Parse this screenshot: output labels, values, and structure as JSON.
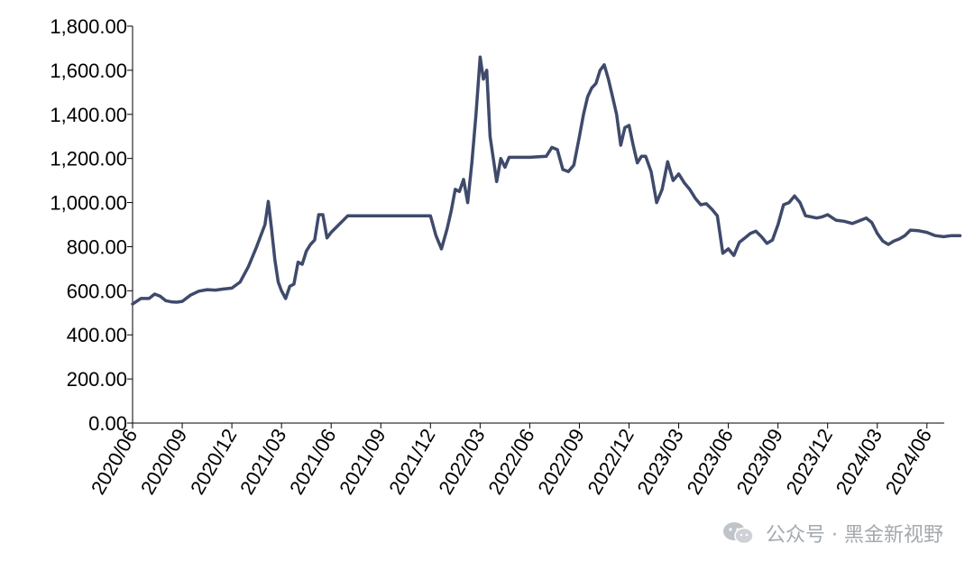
{
  "chart_data": {
    "type": "line",
    "title": "",
    "xlabel": "",
    "ylabel": "",
    "ylim": [
      0,
      1800
    ],
    "yticks": [
      "0.00",
      "200.00",
      "400.00",
      "600.00",
      "800.00",
      "1,000.00",
      "1,200.00",
      "1,400.00",
      "1,600.00",
      "1,800.00"
    ],
    "xticks": [
      "2020/06",
      "2020/09",
      "2020/12",
      "2021/03",
      "2021/06",
      "2021/09",
      "2021/12",
      "2022/03",
      "2022/06",
      "2022/09",
      "2022/12",
      "2023/03",
      "2023/06",
      "2023/09",
      "2023/12",
      "2024/03",
      "2024/06"
    ],
    "grid": false,
    "line_color": "#3f4a6b",
    "series": [
      {
        "points": [
          [
            "2020/06",
            540
          ],
          [
            "2020/06",
            565
          ],
          [
            "2020/07",
            565
          ],
          [
            "2020/07",
            585
          ],
          [
            "2020/07",
            575
          ],
          [
            "2020/08",
            555
          ],
          [
            "2020/08",
            550
          ],
          [
            "2020/08",
            548
          ],
          [
            "2020/09",
            552
          ],
          [
            "2020/09",
            580
          ],
          [
            "2020/10",
            598
          ],
          [
            "2020/10",
            605
          ],
          [
            "2020/11",
            603
          ],
          [
            "2020/11",
            608
          ],
          [
            "2020/12",
            612
          ],
          [
            "2020/12",
            640
          ],
          [
            "2021/01",
            710
          ],
          [
            "2021/01",
            800
          ],
          [
            "2021/02",
            900
          ],
          [
            "2021/02",
            1005
          ],
          [
            "2021/02",
            880
          ],
          [
            "2021/02",
            740
          ],
          [
            "2021/02",
            640
          ],
          [
            "2021/03",
            600
          ],
          [
            "2021/03",
            565
          ],
          [
            "2021/03",
            620
          ],
          [
            "2021/03",
            630
          ],
          [
            "2021/04",
            730
          ],
          [
            "2021/04",
            720
          ],
          [
            "2021/04",
            780
          ],
          [
            "2021/04",
            810
          ],
          [
            "2021/05",
            830
          ],
          [
            "2021/05",
            945
          ],
          [
            "2021/05",
            945
          ],
          [
            "2021/05",
            840
          ],
          [
            "2021/06",
            865
          ],
          [
            "2021/07",
            940
          ],
          [
            "2021/08",
            940
          ],
          [
            "2021/09",
            940
          ],
          [
            "2021/10",
            940
          ],
          [
            "2021/11",
            940
          ],
          [
            "2021/12",
            940
          ],
          [
            "2021/12",
            850
          ],
          [
            "2021/12",
            790
          ],
          [
            "2022/01",
            880
          ],
          [
            "2022/01",
            960
          ],
          [
            "2022/01",
            1060
          ],
          [
            "2022/01",
            1050
          ],
          [
            "2022/02",
            1105
          ],
          [
            "2022/02",
            1000
          ],
          [
            "2022/02",
            1180
          ],
          [
            "2022/02",
            1400
          ],
          [
            "2022/03",
            1660
          ],
          [
            "2022/03",
            1560
          ],
          [
            "2022/03",
            1600
          ],
          [
            "2022/03",
            1300
          ],
          [
            "2022/03",
            1200
          ],
          [
            "2022/04",
            1095
          ],
          [
            "2022/04",
            1200
          ],
          [
            "2022/04",
            1160
          ],
          [
            "2022/04",
            1205
          ],
          [
            "2022/05",
            1205
          ],
          [
            "2022/06",
            1205
          ],
          [
            "2022/07",
            1210
          ],
          [
            "2022/07",
            1250
          ],
          [
            "2022/07",
            1240
          ],
          [
            "2022/08",
            1150
          ],
          [
            "2022/08",
            1140
          ],
          [
            "2022/08",
            1170
          ],
          [
            "2022/09",
            1300
          ],
          [
            "2022/09",
            1400
          ],
          [
            "2022/09",
            1480
          ],
          [
            "2022/09",
            1520
          ],
          [
            "2022/10",
            1540
          ],
          [
            "2022/10",
            1600
          ],
          [
            "2022/10",
            1625
          ],
          [
            "2022/10",
            1560
          ],
          [
            "2022/11",
            1480
          ],
          [
            "2022/11",
            1400
          ],
          [
            "2022/11",
            1260
          ],
          [
            "2022/11",
            1340
          ],
          [
            "2022/12",
            1350
          ],
          [
            "2022/12",
            1260
          ],
          [
            "2022/12",
            1180
          ],
          [
            "2022/12",
            1210
          ],
          [
            "2023/01",
            1210
          ],
          [
            "2023/01",
            1140
          ],
          [
            "2023/01",
            1000
          ],
          [
            "2023/02",
            1060
          ],
          [
            "2023/02",
            1185
          ],
          [
            "2023/02",
            1100
          ],
          [
            "2023/03",
            1130
          ],
          [
            "2023/03",
            1090
          ],
          [
            "2023/03",
            1060
          ],
          [
            "2023/04",
            1020
          ],
          [
            "2023/04",
            990
          ],
          [
            "2023/04",
            995
          ],
          [
            "2023/05",
            970
          ],
          [
            "2023/05",
            940
          ],
          [
            "2023/05",
            770
          ],
          [
            "2023/06",
            790
          ],
          [
            "2023/06",
            760
          ],
          [
            "2023/06",
            820
          ],
          [
            "2023/07",
            840
          ],
          [
            "2023/07",
            860
          ],
          [
            "2023/07",
            870
          ],
          [
            "2023/08",
            845
          ],
          [
            "2023/08",
            815
          ],
          [
            "2023/08",
            830
          ],
          [
            "2023/09",
            900
          ],
          [
            "2023/09",
            990
          ],
          [
            "2023/09",
            1000
          ],
          [
            "2023/10",
            1030
          ],
          [
            "2023/10",
            1000
          ],
          [
            "2023/10",
            940
          ],
          [
            "2023/11",
            935
          ],
          [
            "2023/11",
            930
          ],
          [
            "2023/11",
            935
          ],
          [
            "2023/12",
            945
          ],
          [
            "2023/12",
            920
          ],
          [
            "2024/01",
            915
          ],
          [
            "2024/01",
            905
          ],
          [
            "2024/02",
            920
          ],
          [
            "2024/02",
            930
          ],
          [
            "2024/02",
            910
          ],
          [
            "2024/03",
            860
          ],
          [
            "2024/03",
            825
          ],
          [
            "2024/03",
            810
          ],
          [
            "2024/04",
            825
          ],
          [
            "2024/04",
            835
          ],
          [
            "2024/04",
            850
          ],
          [
            "2024/05",
            875
          ],
          [
            "2024/05",
            872
          ],
          [
            "2024/06",
            865
          ],
          [
            "2024/06",
            850
          ],
          [
            "2024/07",
            845
          ],
          [
            "2024/07",
            850
          ],
          [
            "2024/08",
            850
          ]
        ]
      }
    ]
  },
  "watermark": {
    "text": "公众号 · 黑金新视野",
    "icon": "wechat-icon"
  }
}
